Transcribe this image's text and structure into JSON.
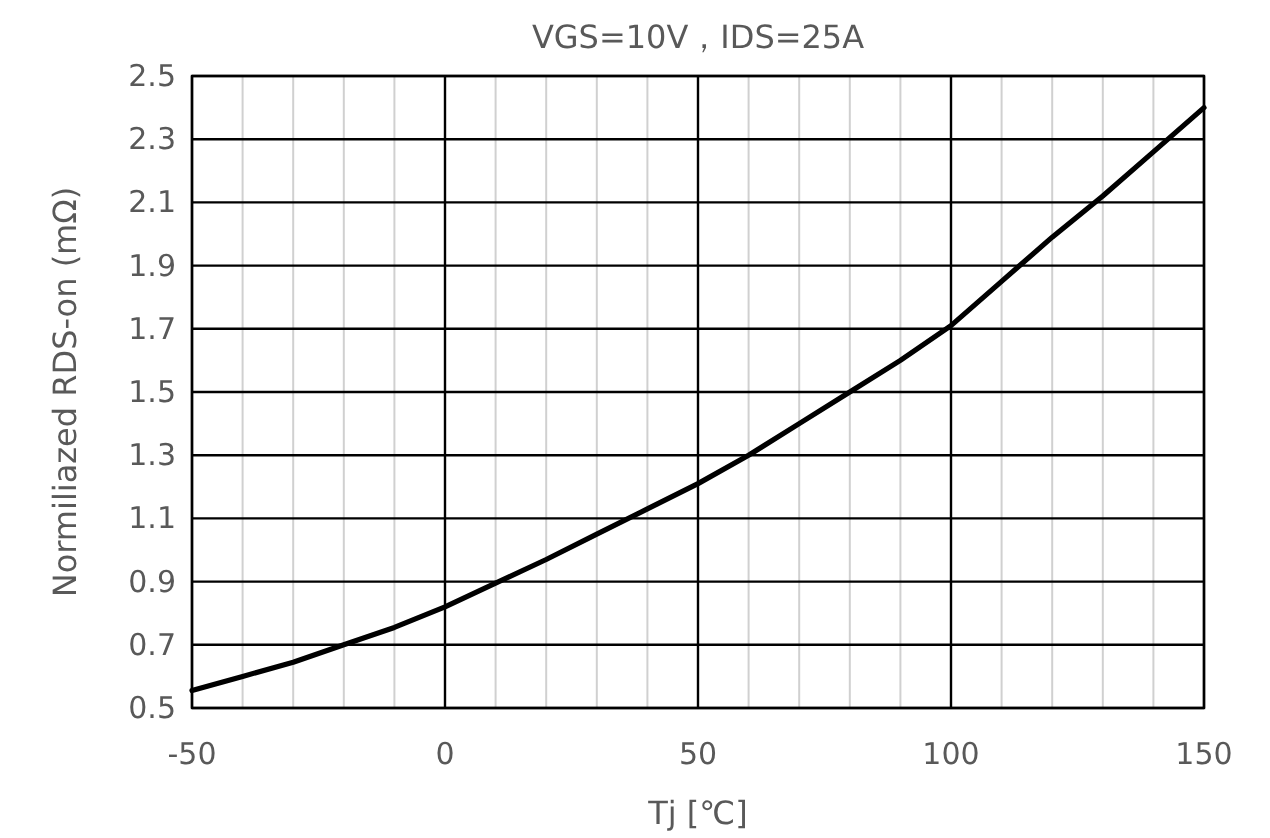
{
  "chart_data": {
    "type": "line",
    "title": "VGS=10V，IDS=25A",
    "xlabel": "Tj [℃]",
    "ylabel": "Normiliazed RDS-on (mΩ)",
    "x": [
      -50,
      -40,
      -30,
      -20,
      -10,
      0,
      10,
      20,
      30,
      40,
      50,
      60,
      70,
      80,
      90,
      100,
      110,
      120,
      130,
      140,
      150
    ],
    "series": [
      {
        "color": "#000000",
        "values": [
          0.555,
          0.6,
          0.645,
          0.7,
          0.755,
          0.82,
          0.895,
          0.97,
          1.05,
          1.13,
          1.21,
          1.3,
          1.4,
          1.5,
          1.6,
          1.71,
          1.85,
          1.99,
          2.12,
          2.26,
          2.4
        ]
      }
    ],
    "xlim": [
      -50,
      150
    ],
    "ylim": [
      0.5,
      2.5
    ],
    "xticks": [
      -50,
      {
        "value": -40,
        "label": null
      },
      {
        "value": -30,
        "label": null
      },
      {
        "value": -20,
        "label": null
      },
      {
        "value": -10,
        "label": null
      },
      0,
      {
        "value": 10,
        "label": null
      },
      {
        "value": 20,
        "label": null
      },
      {
        "value": 30,
        "label": null
      },
      {
        "value": 40,
        "label": null
      },
      50,
      {
        "value": 60,
        "label": null
      },
      {
        "value": 70,
        "label": null
      },
      {
        "value": 80,
        "label": null
      },
      {
        "value": 90,
        "label": null
      },
      100,
      {
        "value": 110,
        "label": null
      },
      {
        "value": 120,
        "label": null
      },
      {
        "value": 130,
        "label": null
      },
      {
        "value": 140,
        "label": null
      },
      150
    ],
    "yticks": [
      0.5,
      0.7,
      0.9,
      1.1,
      1.3,
      1.5,
      1.7,
      1.9,
      2.1,
      2.3,
      2.5
    ],
    "grid": true,
    "marker": "none",
    "line_style": "solid"
  }
}
